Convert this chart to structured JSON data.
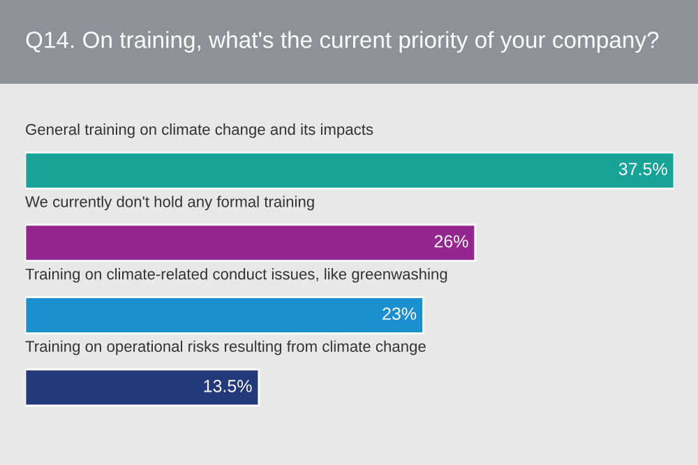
{
  "chart_data": {
    "type": "bar",
    "orientation": "horizontal",
    "title": "Q14. On training, what's the current priority of your company?",
    "categories": [
      "General training on climate change and its impacts",
      "We currently don't hold any formal training",
      "Training on climate-related conduct issues, like greenwashing",
      "Training on operational risks resulting from climate change"
    ],
    "values": [
      37.5,
      26,
      23,
      13.5
    ],
    "colors": [
      "#17a398",
      "#93278f",
      "#1b8fd0",
      "#23397a"
    ],
    "value_labels": [
      "37.5%",
      "26%",
      "23%",
      "13.5%"
    ]
  }
}
